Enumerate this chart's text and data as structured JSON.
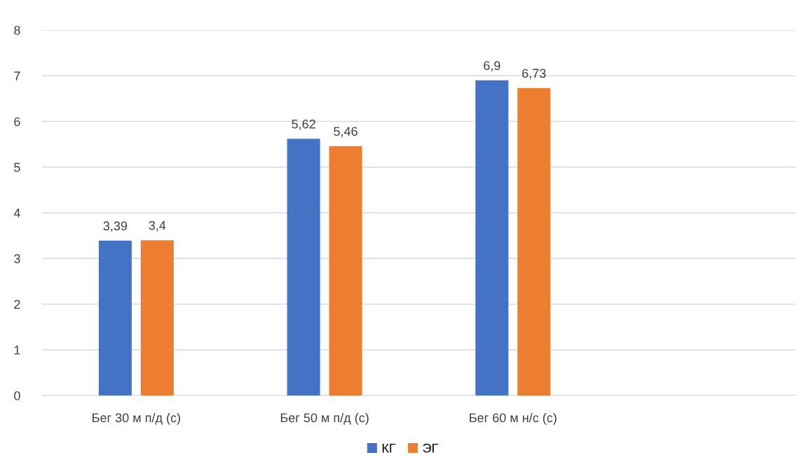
{
  "chart_data": {
    "type": "bar",
    "categories": [
      "Бег 30 м п/д (с)",
      "Бег 50 м п/д (с)",
      "Бег 60 м н/с (с)",
      null
    ],
    "series": [
      {
        "name": "КГ",
        "color": "#4472c4",
        "values": [
          3.39,
          5.62,
          6.9,
          null
        ],
        "value_labels": [
          "3,39",
          "5,62",
          "6,9",
          null
        ]
      },
      {
        "name": "ЭГ",
        "color": "#ed7d31",
        "values": [
          3.4,
          5.46,
          6.73,
          null
        ],
        "value_labels": [
          "3,4",
          "5,46",
          "6,73",
          null
        ]
      }
    ],
    "ylim": [
      0,
      8
    ],
    "yticks": [
      0,
      1,
      2,
      3,
      4,
      5,
      6,
      7,
      8
    ],
    "grid": "y",
    "legend": "bottom"
  }
}
